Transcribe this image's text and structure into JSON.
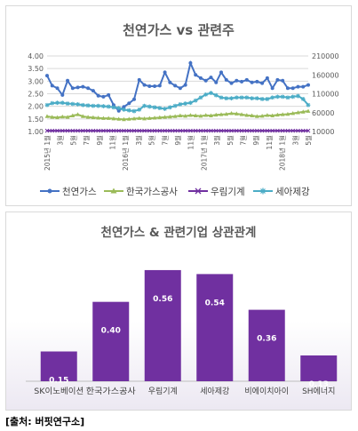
{
  "source_label": "[출처: 버핏연구소]",
  "chart_data": [
    {
      "type": "line",
      "title": "천연가스 vs 관련주",
      "x_ticks": [
        "2015년 1월",
        "3월",
        "5월",
        "7월",
        "9월",
        "11월",
        "2016년 1월",
        "3월",
        "5월",
        "7월",
        "9월",
        "11월",
        "2017년 1월",
        "3월",
        "5월",
        "7월",
        "9월",
        "11월",
        "2018년 1월",
        "3월",
        "5월"
      ],
      "y_left": {
        "ticks": [
          "4.00",
          "3.50",
          "3.00",
          "2.50",
          "2.00",
          "1.50",
          "1.00"
        ],
        "ylim": [
          1.0,
          4.0
        ]
      },
      "y_right": {
        "ticks": [
          "210000",
          "160000",
          "110000",
          "60000",
          "10000"
        ],
        "ylim": [
          10000,
          210000
        ]
      },
      "legend_position": "bottom",
      "series": [
        {
          "name": "천연가스",
          "axis": "left",
          "color": "#4472c4",
          "marker": "circle",
          "values": [
            3.22,
            2.82,
            2.72,
            2.45,
            3.02,
            2.72,
            2.75,
            2.78,
            2.72,
            2.62,
            2.42,
            2.38,
            2.45,
            2.05,
            1.82,
            1.98,
            2.12,
            2.28,
            3.05,
            2.85,
            2.8,
            2.8,
            2.82,
            3.35,
            2.95,
            2.82,
            2.72,
            2.85,
            3.72,
            3.25,
            3.12,
            3.02,
            3.15,
            2.95,
            3.35,
            3.05,
            2.92,
            3.02,
            2.98,
            3.05,
            2.95,
            2.98,
            2.92,
            3.12,
            2.72,
            3.05,
            3.02,
            2.72,
            2.72,
            2.78,
            2.78,
            2.85
          ]
        },
        {
          "name": "한국가스공사",
          "axis": "right",
          "color": "#9bbb59",
          "marker": "triangle",
          "values": [
            50000,
            48000,
            47000,
            49000,
            48000,
            52000,
            55000,
            50000,
            48000,
            47000,
            46000,
            45000,
            45000,
            44000,
            43000,
            42000,
            43000,
            44000,
            45000,
            44000,
            45000,
            46000,
            47000,
            48000,
            49000,
            50000,
            52000,
            51000,
            53000,
            52000,
            51000,
            53000,
            52000,
            54000,
            55000,
            56000,
            58000,
            57000,
            55000,
            53000,
            52000,
            50000,
            51000,
            53000,
            52000,
            54000,
            55000,
            56000,
            58000,
            60000,
            62000,
            64000
          ]
        },
        {
          "name": "우림기계",
          "axis": "right",
          "color": "#7030a0",
          "marker": "x",
          "values": [
            12000,
            12000,
            12000,
            12000,
            12000,
            12000,
            12000,
            12000,
            12000,
            12000,
            12000,
            12000,
            12000,
            12000,
            12000,
            12000,
            12000,
            12000,
            12000,
            12000,
            12000,
            12000,
            12000,
            12000,
            12000,
            12000,
            12000,
            12000,
            12000,
            12000,
            12000,
            12000,
            12000,
            12000,
            12000,
            12000,
            12000,
            12000,
            12000,
            12000,
            12000,
            12000,
            12000,
            12000,
            12000,
            12000,
            12000,
            12000,
            12000,
            12000,
            12000,
            12000
          ]
        },
        {
          "name": "세아제강",
          "axis": "right",
          "color": "#4bacc6",
          "marker": "asterisk",
          "values": [
            80000,
            85000,
            86000,
            86000,
            84000,
            83000,
            82000,
            80000,
            79000,
            78000,
            78000,
            77000,
            76000,
            74000,
            72000,
            68000,
            66000,
            64000,
            68000,
            78000,
            76000,
            74000,
            72000,
            70000,
            74000,
            78000,
            82000,
            84000,
            86000,
            92000,
            100000,
            108000,
            112000,
            106000,
            100000,
            98000,
            98000,
            100000,
            100000,
            100000,
            98000,
            98000,
            96000,
            96000,
            100000,
            102000,
            102000,
            100000,
            102000,
            104000,
            96000,
            80000
          ]
        }
      ]
    },
    {
      "type": "bar",
      "title": "천연가스 & 관련기업 상관관계",
      "categories": [
        "SK이노베이션",
        "한국가스공사",
        "우림기계",
        "세아제강",
        "비에이치아이",
        "SH에너지"
      ],
      "values": [
        0.15,
        0.4,
        0.56,
        0.54,
        0.36,
        0.13
      ],
      "value_labels": [
        "0.15",
        "0.40",
        "0.56",
        "0.54",
        "0.36",
        "0.13"
      ],
      "ylim": [
        0,
        0.6
      ],
      "color": "#7030a0"
    }
  ]
}
